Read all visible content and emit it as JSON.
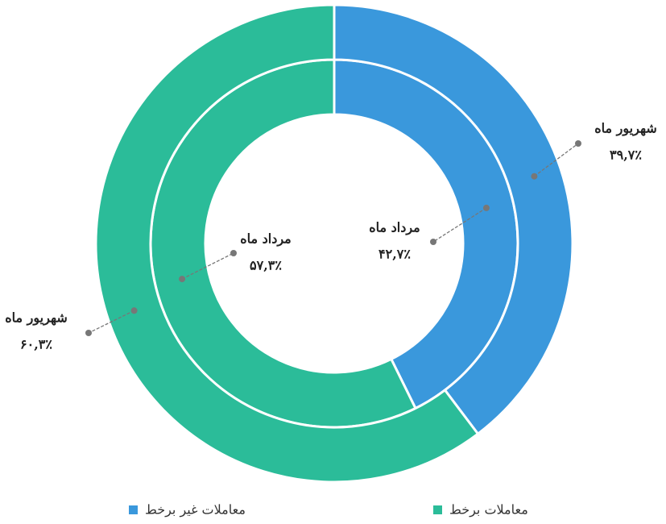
{
  "chart_data": {
    "type": "donut",
    "categories": [
      "مرداد ماه",
      "شهریور ماه"
    ],
    "series": [
      {
        "name": "معاملات غیر برخط",
        "color": "#3a98dc",
        "values": [
          42.7,
          39.7
        ],
        "value_labels": [
          "۴۲,۷٪",
          "۳۹,۷٪"
        ]
      },
      {
        "name": "معاملات برخط",
        "color": "#2bbc99",
        "values": [
          57.3,
          60.3
        ],
        "value_labels": [
          "۵۷,۳٪",
          "۶۰,۳٪"
        ]
      }
    ],
    "legend": "bottom"
  }
}
